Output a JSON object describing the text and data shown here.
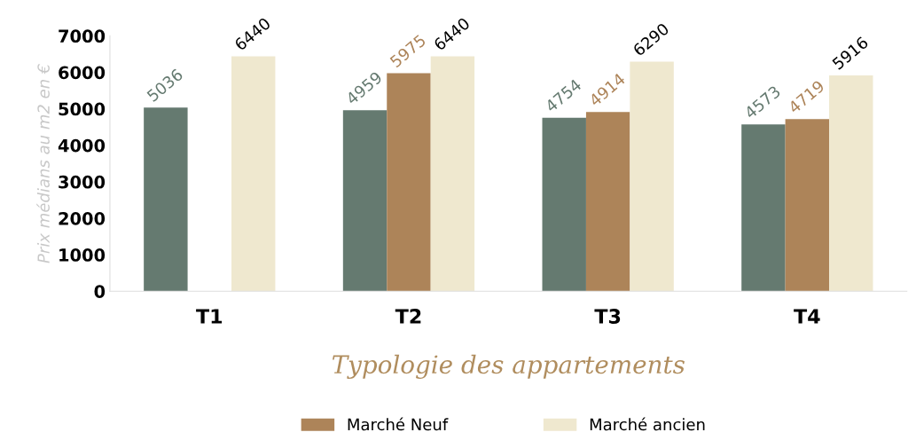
{
  "chart_data": {
    "type": "bar",
    "xlabel": "Typologie des appartements",
    "ylabel": "Prix médians au m2 en €",
    "categories": [
      "T1",
      "T2",
      "T3",
      "T4"
    ],
    "series": [
      {
        "color": "#657a70",
        "values": [
          5036,
          4959,
          4754,
          4573
        ]
      },
      {
        "name": "Marché Neuf",
        "color": "#ad8459",
        "values": [
          null,
          5975,
          4914,
          4719
        ]
      },
      {
        "name": "Marché ancien",
        "color": "#efe8cf",
        "values": [
          6440,
          6440,
          6290,
          5916
        ]
      }
    ],
    "ylim": [
      0,
      7000
    ],
    "yticks": [
      0,
      1000,
      2000,
      3000,
      4000,
      5000,
      6000,
      7000
    ],
    "data_labels": true,
    "grid": false,
    "legend": "bottom"
  }
}
